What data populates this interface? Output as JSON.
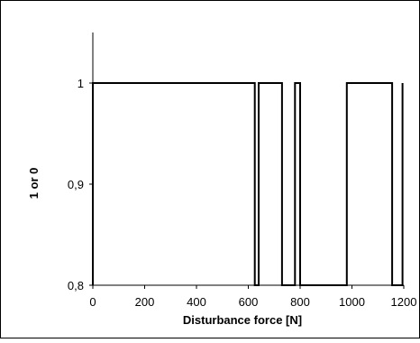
{
  "chart_data": {
    "type": "line",
    "title": "",
    "xlabel": "Disturbance force [N]",
    "ylabel": "1 or 0",
    "xlim": [
      0,
      1200
    ],
    "ylim": [
      0.8,
      1.05
    ],
    "xticks": [
      0,
      200,
      400,
      600,
      800,
      1000,
      1200
    ],
    "xtick_labels": [
      "0",
      "200",
      "400",
      "600",
      "800",
      "1000",
      "1200"
    ],
    "yticks": [
      0.8,
      0.9,
      1.0
    ],
    "ytick_labels": [
      "0,8",
      "0,9",
      "1"
    ],
    "grid": false,
    "legend": "none",
    "line_color": "#000000",
    "frame_color": "#000000",
    "series": [
      {
        "x": [
          0,
          0,
          625,
          625,
          640,
          640,
          730,
          730,
          780,
          780,
          800,
          800,
          980,
          980,
          1155,
          1155,
          1195,
          1195
        ],
        "y": [
          0.8,
          1,
          1,
          0.8,
          0.8,
          1,
          1,
          0.8,
          0.8,
          1,
          1,
          0.8,
          0.8,
          1,
          1,
          0.8,
          0.8,
          1
        ]
      }
    ]
  }
}
